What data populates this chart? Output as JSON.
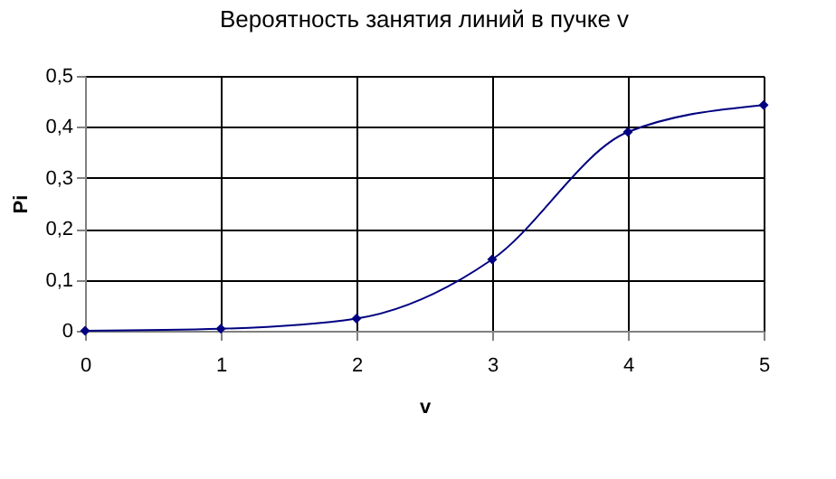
{
  "chart_data": {
    "type": "line",
    "title": "Вероятность занятия линий в пучке v",
    "xlabel": "v",
    "ylabel": "Pi",
    "x": [
      0,
      1,
      2,
      3,
      4,
      5
    ],
    "series": [
      {
        "color": "#000080",
        "values": [
          0,
          0.004,
          0.024,
          0.14,
          0.39,
          0.443
        ]
      }
    ],
    "xlim": [
      0,
      5
    ],
    "xticks": [
      0,
      1,
      2,
      3,
      4,
      5
    ],
    "ylim": [
      0,
      0.5
    ],
    "yticks": [
      0,
      {
        "value": 0.1,
        "label": "0,1"
      },
      {
        "value": 0.2,
        "label": "0,2"
      },
      {
        "value": 0.3,
        "label": "0,3"
      },
      {
        "value": 0.4,
        "label": "0,4"
      },
      {
        "value": 0.5,
        "label": "0,5"
      }
    ],
    "grid": true,
    "marker": "diamond",
    "line_style": "solid"
  }
}
